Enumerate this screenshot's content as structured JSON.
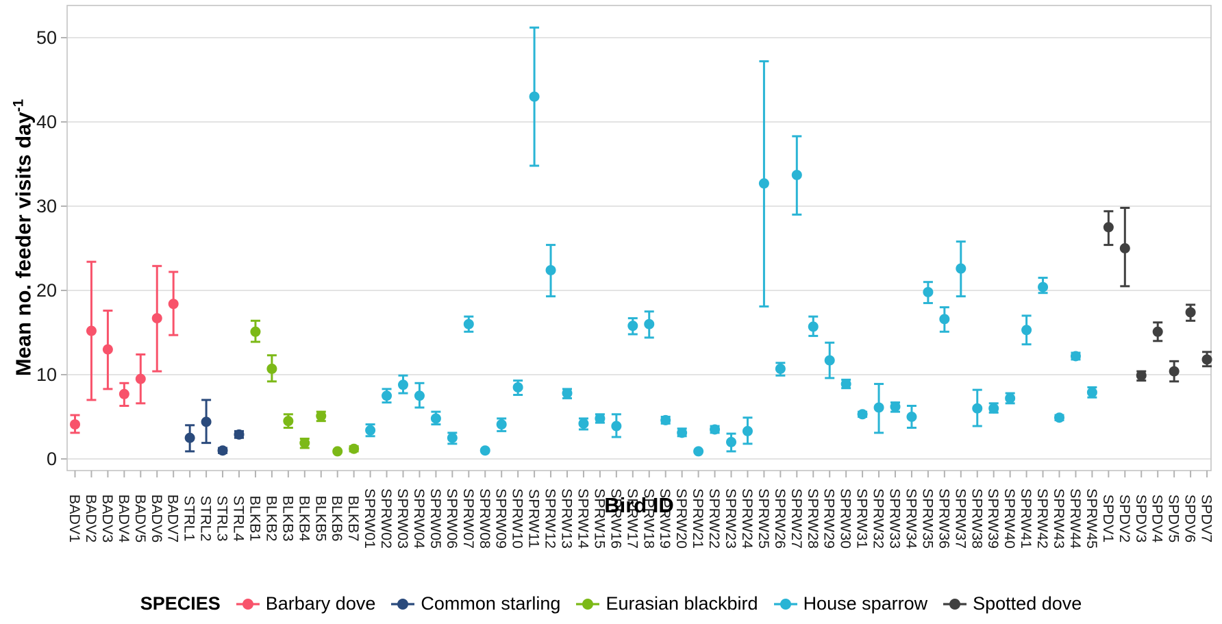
{
  "chart_data": {
    "type": "scatter",
    "subtype": "pointrange",
    "title": "",
    "xlabel": "Bird ID",
    "ylabel": "Mean no. feeder visits day",
    "ylabel_superscript": "-1",
    "ylim": [
      0,
      53
    ],
    "yticks": [
      0,
      10,
      20,
      30,
      40,
      50
    ],
    "grid": "horizontal-only",
    "legend_title": "SPECIES",
    "legend_position": "bottom",
    "axis_colors": {
      "tick": "#b3b3b3",
      "grid": "#e3e3e3",
      "border": "#c3c3c3",
      "text": "#1a1a1a"
    },
    "series": [
      {
        "name": "Barbary dove",
        "color": "#f8536b",
        "points": [
          {
            "id": "BADV1",
            "mean": 4.1,
            "lower": 3.1,
            "upper": 5.2
          },
          {
            "id": "BADV2",
            "mean": 15.2,
            "lower": 7.0,
            "upper": 23.4
          },
          {
            "id": "BADV3",
            "mean": 13.0,
            "lower": 8.3,
            "upper": 17.6
          },
          {
            "id": "BADV4",
            "mean": 7.7,
            "lower": 6.3,
            "upper": 9.0
          },
          {
            "id": "BADV5",
            "mean": 9.5,
            "lower": 6.6,
            "upper": 12.4
          },
          {
            "id": "BADV6",
            "mean": 16.7,
            "lower": 10.4,
            "upper": 22.9
          },
          {
            "id": "BADV7",
            "mean": 18.4,
            "lower": 14.7,
            "upper": 22.2
          }
        ]
      },
      {
        "name": "Common starling",
        "color": "#2a4a7c",
        "points": [
          {
            "id": "STRL1",
            "mean": 2.5,
            "lower": 0.9,
            "upper": 4.0
          },
          {
            "id": "STRL2",
            "mean": 4.4,
            "lower": 1.9,
            "upper": 7.0
          },
          {
            "id": "STRL3",
            "mean": 1.0,
            "lower": 0.7,
            "upper": 1.3
          },
          {
            "id": "STRL4",
            "mean": 2.9,
            "lower": 2.5,
            "upper": 3.3
          }
        ]
      },
      {
        "name": "Eurasian blackbird",
        "color": "#7cb917",
        "points": [
          {
            "id": "BLKB1",
            "mean": 15.1,
            "lower": 13.9,
            "upper": 16.4
          },
          {
            "id": "BLKB2",
            "mean": 10.7,
            "lower": 9.2,
            "upper": 12.3
          },
          {
            "id": "BLKB3",
            "mean": 4.5,
            "lower": 3.7,
            "upper": 5.3
          },
          {
            "id": "BLKB4",
            "mean": 1.9,
            "lower": 1.3,
            "upper": 2.4
          },
          {
            "id": "BLKB5",
            "mean": 5.1,
            "lower": 4.5,
            "upper": 5.6
          },
          {
            "id": "BLKB6",
            "mean": 0.9,
            "lower": 0.9,
            "upper": 0.9
          },
          {
            "id": "BLKB7",
            "mean": 1.2,
            "lower": 0.9,
            "upper": 1.5
          }
        ]
      },
      {
        "name": "House sparrow",
        "color": "#29b4d5",
        "points": [
          {
            "id": "SPRW01",
            "mean": 3.4,
            "lower": 2.7,
            "upper": 4.1
          },
          {
            "id": "SPRW02",
            "mean": 7.5,
            "lower": 6.7,
            "upper": 8.3
          },
          {
            "id": "SPRW03",
            "mean": 8.8,
            "lower": 7.8,
            "upper": 9.9
          },
          {
            "id": "SPRW04",
            "mean": 7.5,
            "lower": 6.1,
            "upper": 9.0
          },
          {
            "id": "SPRW05",
            "mean": 4.8,
            "lower": 4.1,
            "upper": 5.6
          },
          {
            "id": "SPRW06",
            "mean": 2.5,
            "lower": 1.8,
            "upper": 3.1
          },
          {
            "id": "SPRW07",
            "mean": 16.0,
            "lower": 15.1,
            "upper": 16.9
          },
          {
            "id": "SPRW08",
            "mean": 1.0,
            "lower": 1.0,
            "upper": 1.0
          },
          {
            "id": "SPRW09",
            "mean": 4.1,
            "lower": 3.3,
            "upper": 4.8
          },
          {
            "id": "SPRW10",
            "mean": 8.5,
            "lower": 7.6,
            "upper": 9.3
          },
          {
            "id": "SPRW11",
            "mean": 43.0,
            "lower": 34.8,
            "upper": 51.2
          },
          {
            "id": "SPRW12",
            "mean": 22.4,
            "lower": 19.3,
            "upper": 25.4
          },
          {
            "id": "SPRW13",
            "mean": 7.8,
            "lower": 7.2,
            "upper": 8.3
          },
          {
            "id": "SPRW14",
            "mean": 4.2,
            "lower": 3.5,
            "upper": 4.8
          },
          {
            "id": "SPRW15",
            "mean": 4.8,
            "lower": 4.3,
            "upper": 5.3
          },
          {
            "id": "SPRW16",
            "mean": 3.9,
            "lower": 2.6,
            "upper": 5.3
          },
          {
            "id": "SPRW17",
            "mean": 15.8,
            "lower": 14.8,
            "upper": 16.7
          },
          {
            "id": "SPRW18",
            "mean": 16.0,
            "lower": 14.4,
            "upper": 17.5
          },
          {
            "id": "SPRW19",
            "mean": 4.6,
            "lower": 4.2,
            "upper": 5.0
          },
          {
            "id": "SPRW20",
            "mean": 3.1,
            "lower": 2.7,
            "upper": 3.6
          },
          {
            "id": "SPRW21",
            "mean": 0.9,
            "lower": 0.9,
            "upper": 0.9
          },
          {
            "id": "SPRW22",
            "mean": 3.5,
            "lower": 3.1,
            "upper": 3.9
          },
          {
            "id": "SPRW23",
            "mean": 2.0,
            "lower": 0.9,
            "upper": 3.0
          },
          {
            "id": "SPRW24",
            "mean": 3.3,
            "lower": 1.8,
            "upper": 4.9
          },
          {
            "id": "SPRW25",
            "mean": 32.7,
            "lower": 18.1,
            "upper": 47.2
          },
          {
            "id": "SPRW26",
            "mean": 10.7,
            "lower": 9.9,
            "upper": 11.4
          },
          {
            "id": "SPRW27",
            "mean": 33.7,
            "lower": 29.0,
            "upper": 38.3
          },
          {
            "id": "SPRW28",
            "mean": 15.7,
            "lower": 14.6,
            "upper": 16.9
          },
          {
            "id": "SPRW29",
            "mean": 11.7,
            "lower": 9.6,
            "upper": 13.8
          },
          {
            "id": "SPRW30",
            "mean": 8.9,
            "lower": 8.4,
            "upper": 9.4
          },
          {
            "id": "SPRW31",
            "mean": 5.3,
            "lower": 5.0,
            "upper": 5.6
          },
          {
            "id": "SPRW32",
            "mean": 6.1,
            "lower": 3.1,
            "upper": 8.9
          },
          {
            "id": "SPRW33",
            "mean": 6.2,
            "lower": 5.6,
            "upper": 6.7
          },
          {
            "id": "SPRW34",
            "mean": 5.0,
            "lower": 3.7,
            "upper": 6.3
          },
          {
            "id": "SPRW35",
            "mean": 19.8,
            "lower": 18.5,
            "upper": 21.0
          },
          {
            "id": "SPRW36",
            "mean": 16.6,
            "lower": 15.1,
            "upper": 18.0
          },
          {
            "id": "SPRW37",
            "mean": 22.6,
            "lower": 19.3,
            "upper": 25.8
          },
          {
            "id": "SPRW38",
            "mean": 6.0,
            "lower": 3.9,
            "upper": 8.2
          },
          {
            "id": "SPRW39",
            "mean": 6.0,
            "lower": 5.5,
            "upper": 6.6
          },
          {
            "id": "SPRW40",
            "mean": 7.2,
            "lower": 6.6,
            "upper": 7.8
          },
          {
            "id": "SPRW41",
            "mean": 15.3,
            "lower": 13.6,
            "upper": 17.0
          },
          {
            "id": "SPRW42",
            "mean": 20.4,
            "lower": 19.7,
            "upper": 21.5
          },
          {
            "id": "SPRW43",
            "mean": 4.9,
            "lower": 4.6,
            "upper": 5.2
          },
          {
            "id": "SPRW44",
            "mean": 12.2,
            "lower": 11.8,
            "upper": 12.6
          },
          {
            "id": "SPRW45",
            "mean": 7.9,
            "lower": 7.3,
            "upper": 8.5
          }
        ]
      },
      {
        "name": "Spotted dove",
        "color": "#404040",
        "points": [
          {
            "id": "SPDV1",
            "mean": 27.5,
            "lower": 25.4,
            "upper": 29.4
          },
          {
            "id": "SPDV2",
            "mean": 25.0,
            "lower": 20.5,
            "upper": 29.8
          },
          {
            "id": "SPDV3",
            "mean": 9.9,
            "lower": 9.3,
            "upper": 10.4
          },
          {
            "id": "SPDV4",
            "mean": 15.1,
            "lower": 14.0,
            "upper": 16.2
          },
          {
            "id": "SPDV5",
            "mean": 10.4,
            "lower": 9.2,
            "upper": 11.6
          },
          {
            "id": "SPDV6",
            "mean": 17.4,
            "lower": 16.4,
            "upper": 18.3
          },
          {
            "id": "SPDV7",
            "mean": 11.8,
            "lower": 11.0,
            "upper": 12.7
          }
        ]
      }
    ]
  }
}
